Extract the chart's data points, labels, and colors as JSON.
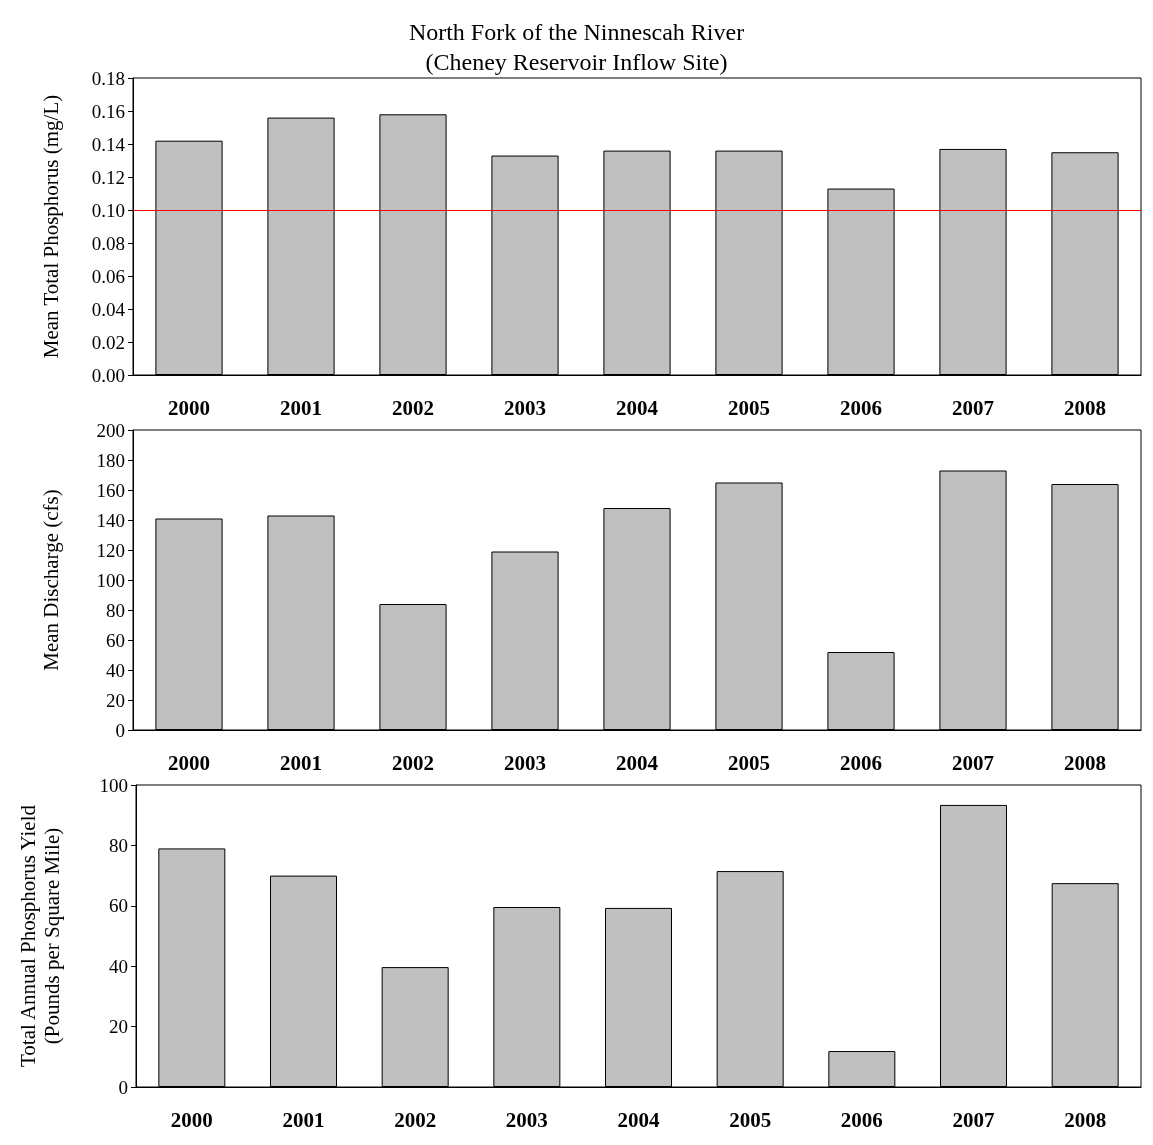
{
  "chart_data": [
    {
      "type": "bar",
      "title": "North Fork of the Ninnescah River\n(Cheney Reservoir Inflow Site)",
      "ylabel": "Mean Total Phosphorus (mg/L)",
      "categories": [
        "2000",
        "2001",
        "2002",
        "2003",
        "2004",
        "2005",
        "2006",
        "2007",
        "2008"
      ],
      "values": [
        0.142,
        0.156,
        0.158,
        0.133,
        0.136,
        0.136,
        0.113,
        0.137,
        0.135
      ],
      "color": "#c0c0c0",
      "ylim": [
        0,
        0.18
      ],
      "yticks": [
        {
          "value": 0,
          "label": "0.00"
        },
        {
          "value": 0.02,
          "label": "0.02"
        },
        {
          "value": 0.04,
          "label": "0.04"
        },
        {
          "value": 0.06,
          "label": "0.06"
        },
        {
          "value": 0.08,
          "label": "0.08"
        },
        {
          "value": 0.1,
          "label": "0.10"
        },
        {
          "value": 0.12,
          "label": "0.12"
        },
        {
          "value": 0.14,
          "label": "0.14"
        },
        {
          "value": 0.16,
          "label": "0.16"
        },
        {
          "value": 0.18,
          "label": "0.18"
        }
      ],
      "ref_lines": [
        {
          "axis": "y",
          "value": 0.1,
          "color": "#ff0000"
        }
      ]
    },
    {
      "type": "bar",
      "ylabel": "Mean Discharge (cfs)",
      "categories": [
        "2000",
        "2001",
        "2002",
        "2003",
        "2004",
        "2005",
        "2006",
        "2007",
        "2008"
      ],
      "values": [
        141,
        143,
        84,
        119,
        148,
        165,
        52,
        173,
        164
      ],
      "color": "#c0c0c0",
      "ylim": [
        0,
        200
      ],
      "yticks": [
        0,
        20,
        40,
        60,
        80,
        100,
        120,
        140,
        160,
        180,
        200
      ]
    },
    {
      "type": "bar",
      "ylabel": "Total Annual Phosphorus Yield\n(Pounds per Square Mile)",
      "categories": [
        "2000",
        "2001",
        "2002",
        "2003",
        "2004",
        "2005",
        "2006",
        "2007",
        "2008"
      ],
      "values": [
        79,
        70,
        39.7,
        59.6,
        59.3,
        71.5,
        11.9,
        93.4,
        67.5
      ],
      "color": "#c0c0c0",
      "ylim": [
        0,
        100
      ],
      "yticks": [
        0,
        20,
        40,
        60,
        80,
        100
      ]
    }
  ]
}
